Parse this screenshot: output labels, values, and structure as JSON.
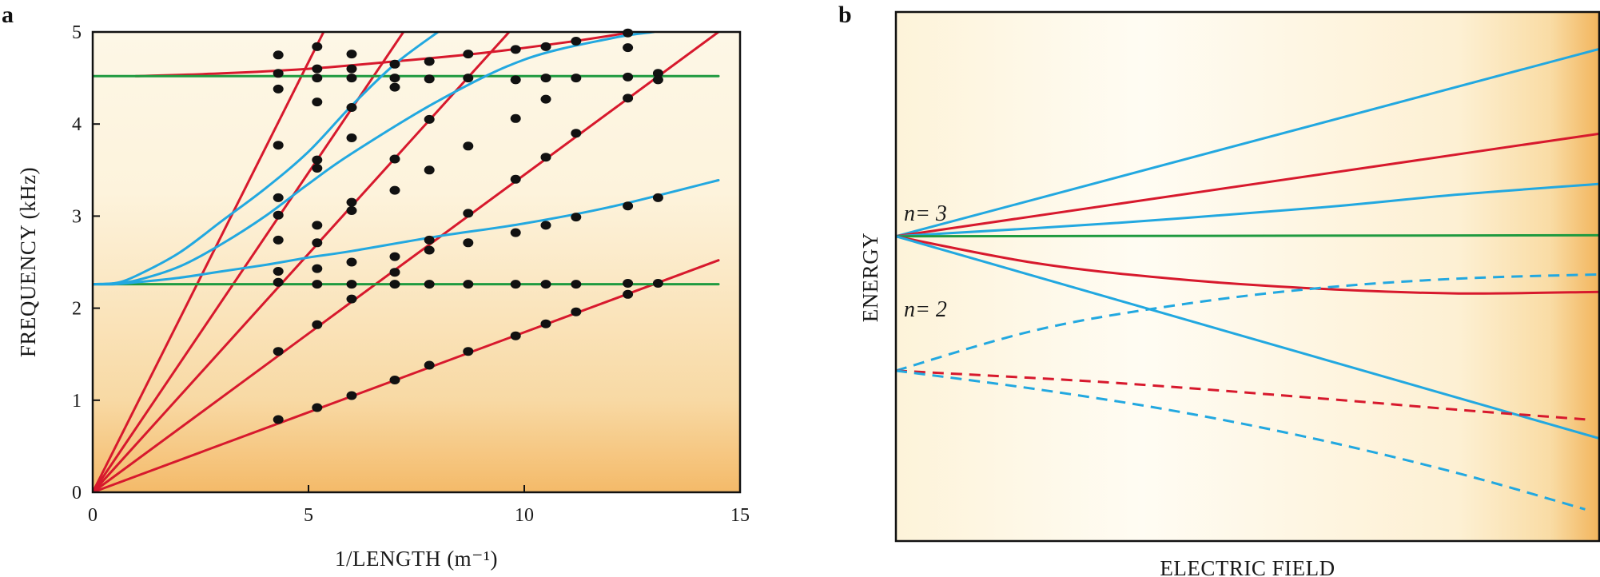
{
  "chart_data": [
    {
      "panel": "a",
      "type": "line",
      "xlabel": "1/LENGTH (m⁻¹)",
      "ylabel": "FREQUENCY (kHz)",
      "xlim": [
        0,
        15
      ],
      "ylim": [
        0,
        5
      ],
      "xticks": [
        "0",
        "5",
        "10",
        "15"
      ],
      "yticks": [
        "0",
        "1",
        "2",
        "3",
        "4",
        "5"
      ],
      "colors": {
        "red": "#d7192d",
        "blue": "#22a8e0",
        "green": "#1f9a40",
        "point": "#111111"
      },
      "series": [
        {
          "name": "red-line-1",
          "color": "red",
          "x": [
            0,
            14.5
          ],
          "y": [
            0,
            2.52
          ]
        },
        {
          "name": "red-line-2",
          "color": "red",
          "x": [
            0,
            14.5
          ],
          "y": [
            0,
            5.0
          ]
        },
        {
          "name": "red-line-3",
          "color": "red",
          "x": [
            0,
            9.65
          ],
          "y": [
            0,
            5.0
          ]
        },
        {
          "name": "red-line-4",
          "color": "red",
          "x": [
            0,
            7.2
          ],
          "y": [
            0,
            5.0
          ]
        },
        {
          "name": "red-line-5",
          "color": "red",
          "x": [
            0,
            5.35
          ],
          "y": [
            0,
            5.0
          ]
        },
        {
          "name": "red-line-upper",
          "color": "red",
          "x": [
            1,
            3,
            5,
            7,
            9,
            11,
            12.4
          ],
          "y": [
            4.52,
            4.55,
            4.6,
            4.68,
            4.77,
            4.89,
            4.99
          ]
        },
        {
          "name": "green-line-upper",
          "color": "green",
          "x": [
            0,
            14.5
          ],
          "y": [
            4.52,
            4.52
          ]
        },
        {
          "name": "green-line-lower",
          "color": "green",
          "x": [
            0,
            14.5
          ],
          "y": [
            2.26,
            2.26
          ]
        },
        {
          "name": "blue-curve-1",
          "color": "blue",
          "x": [
            0,
            0.5,
            1,
            2,
            3,
            4,
            5,
            6,
            8,
            10,
            12,
            14.5
          ],
          "y": [
            2.26,
            2.26,
            2.28,
            2.33,
            2.4,
            2.47,
            2.55,
            2.62,
            2.78,
            2.92,
            3.1,
            3.39
          ]
        },
        {
          "name": "blue-curve-2",
          "color": "blue",
          "x": [
            0,
            0.5,
            1,
            2,
            3,
            4,
            5,
            6,
            8,
            10,
            12,
            13.0
          ],
          "y": [
            2.26,
            2.27,
            2.3,
            2.45,
            2.7,
            3.0,
            3.35,
            3.68,
            4.25,
            4.7,
            4.93,
            5.0
          ]
        },
        {
          "name": "blue-curve-3",
          "color": "blue",
          "x": [
            0,
            0.5,
            1,
            2,
            3,
            4,
            5,
            6,
            7,
            8.0
          ],
          "y": [
            2.26,
            2.27,
            2.35,
            2.6,
            2.95,
            3.3,
            3.7,
            4.2,
            4.65,
            5.0
          ]
        }
      ],
      "points": [
        [
          4.3,
          4.75
        ],
        [
          4.3,
          4.55
        ],
        [
          4.3,
          4.38
        ],
        [
          4.3,
          3.77
        ],
        [
          4.3,
          3.2
        ],
        [
          4.3,
          3.01
        ],
        [
          4.3,
          2.74
        ],
        [
          4.3,
          2.4
        ],
        [
          4.3,
          2.28
        ],
        [
          4.3,
          1.53
        ],
        [
          4.3,
          0.79
        ],
        [
          5.2,
          4.84
        ],
        [
          5.2,
          4.6
        ],
        [
          5.2,
          4.5
        ],
        [
          5.2,
          4.24
        ],
        [
          5.2,
          3.61
        ],
        [
          5.2,
          3.52
        ],
        [
          5.2,
          2.9
        ],
        [
          5.2,
          2.71
        ],
        [
          5.2,
          2.43
        ],
        [
          5.2,
          2.26
        ],
        [
          5.2,
          1.82
        ],
        [
          5.2,
          0.92
        ],
        [
          6.0,
          4.76
        ],
        [
          6.0,
          4.6
        ],
        [
          6.0,
          4.5
        ],
        [
          6.0,
          4.18
        ],
        [
          6.0,
          3.85
        ],
        [
          6.0,
          3.15
        ],
        [
          6.0,
          3.06
        ],
        [
          6.0,
          2.5
        ],
        [
          6.0,
          2.26
        ],
        [
          6.0,
          2.1
        ],
        [
          6.0,
          1.05
        ],
        [
          7.0,
          4.65
        ],
        [
          7.0,
          4.5
        ],
        [
          7.0,
          4.4
        ],
        [
          7.0,
          3.62
        ],
        [
          7.0,
          3.28
        ],
        [
          7.0,
          2.56
        ],
        [
          7.0,
          2.39
        ],
        [
          7.0,
          2.26
        ],
        [
          7.0,
          1.22
        ],
        [
          7.8,
          4.68
        ],
        [
          7.8,
          4.49
        ],
        [
          7.8,
          4.05
        ],
        [
          7.8,
          3.5
        ],
        [
          7.8,
          2.74
        ],
        [
          7.8,
          2.63
        ],
        [
          7.8,
          2.26
        ],
        [
          7.8,
          1.38
        ],
        [
          8.7,
          4.76
        ],
        [
          8.7,
          4.5
        ],
        [
          8.7,
          3.76
        ],
        [
          8.7,
          3.03
        ],
        [
          8.7,
          2.71
        ],
        [
          8.7,
          2.26
        ],
        [
          8.7,
          1.53
        ],
        [
          9.8,
          4.81
        ],
        [
          9.8,
          4.48
        ],
        [
          9.8,
          4.06
        ],
        [
          9.8,
          3.4
        ],
        [
          9.8,
          2.82
        ],
        [
          9.8,
          2.26
        ],
        [
          9.8,
          1.7
        ],
        [
          10.5,
          4.84
        ],
        [
          10.5,
          4.5
        ],
        [
          10.5,
          4.27
        ],
        [
          10.5,
          3.64
        ],
        [
          10.5,
          2.9
        ],
        [
          10.5,
          2.26
        ],
        [
          10.5,
          1.83
        ],
        [
          11.2,
          4.9
        ],
        [
          11.2,
          4.5
        ],
        [
          11.2,
          3.9
        ],
        [
          11.2,
          2.99
        ],
        [
          11.2,
          2.26
        ],
        [
          11.2,
          1.96
        ],
        [
          12.4,
          4.99
        ],
        [
          12.4,
          4.83
        ],
        [
          12.4,
          4.51
        ],
        [
          12.4,
          4.28
        ],
        [
          12.4,
          3.11
        ],
        [
          12.4,
          2.27
        ],
        [
          12.4,
          2.15
        ],
        [
          13.1,
          4.55
        ],
        [
          13.1,
          4.48
        ],
        [
          13.1,
          3.2
        ],
        [
          13.1,
          2.27
        ]
      ]
    },
    {
      "panel": "b",
      "type": "line",
      "xlabel": "ELECTRIC FIELD",
      "ylabel": "ENERGY",
      "xlim": [
        0,
        1
      ],
      "ylim": [
        0,
        1
      ],
      "annotations": [
        {
          "text": "n= 3",
          "x": 0.01,
          "y": 0.72
        },
        {
          "text": "n= 2",
          "x": 0.01,
          "y": 0.45
        }
      ],
      "series": [
        {
          "name": "n3-blue-up",
          "color": "blue",
          "style": "solid",
          "x": [
            0,
            1
          ],
          "y": [
            0.576,
            0.93
          ]
        },
        {
          "name": "n3-red-up",
          "color": "red",
          "style": "solid",
          "x": [
            0,
            1
          ],
          "y": [
            0.576,
            0.77
          ]
        },
        {
          "name": "n3-blue-mid",
          "color": "blue",
          "style": "solid",
          "x": [
            0,
            0.3,
            0.6,
            0.8,
            1.0
          ],
          "y": [
            0.576,
            0.6,
            0.63,
            0.655,
            0.675
          ]
        },
        {
          "name": "n3-green",
          "color": "green",
          "style": "solid",
          "x": [
            0,
            1
          ],
          "y": [
            0.576,
            0.578
          ]
        },
        {
          "name": "n3-red-down",
          "color": "red",
          "style": "solid",
          "x": [
            0,
            0.2,
            0.4,
            0.6,
            0.8,
            1.0
          ],
          "y": [
            0.576,
            0.525,
            0.495,
            0.477,
            0.468,
            0.471
          ]
        },
        {
          "name": "n3-blue-down",
          "color": "blue",
          "style": "solid",
          "x": [
            0,
            1
          ],
          "y": [
            0.576,
            0.194
          ]
        },
        {
          "name": "n2-blue-up",
          "color": "blue",
          "style": "dashed",
          "x": [
            0,
            0.2,
            0.4,
            0.6,
            0.8,
            1.0
          ],
          "y": [
            0.322,
            0.399,
            0.446,
            0.478,
            0.496,
            0.504
          ]
        },
        {
          "name": "n2-red-down",
          "color": "red",
          "style": "dashed",
          "x": [
            0,
            0.3,
            0.6,
            0.8,
            0.98
          ],
          "y": [
            0.322,
            0.3,
            0.27,
            0.248,
            0.23
          ]
        },
        {
          "name": "n2-blue-down",
          "color": "blue",
          "style": "dashed",
          "x": [
            0,
            0.2,
            0.4,
            0.6,
            0.8,
            0.98
          ],
          "y": [
            0.322,
            0.287,
            0.245,
            0.192,
            0.128,
            0.06
          ]
        }
      ]
    }
  ],
  "panels": {
    "a": "a",
    "b": "b"
  }
}
